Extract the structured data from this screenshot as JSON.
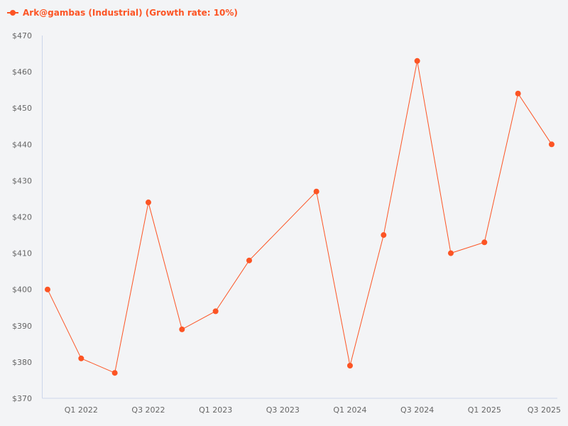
{
  "chart_data": {
    "type": "line",
    "title": "",
    "xlabel": "",
    "ylabel": "",
    "ylim": [
      370,
      470
    ],
    "yticks": [
      370,
      380,
      390,
      400,
      410,
      420,
      430,
      440,
      450,
      460,
      470
    ],
    "ytick_labels": [
      "$370",
      "$380",
      "$390",
      "$400",
      "$410",
      "$420",
      "$430",
      "$440",
      "$450",
      "$460",
      "$470"
    ],
    "categories": [
      "Q4 2021",
      "Q1 2022",
      "Q2 2022",
      "Q3 2022",
      "Q4 2022",
      "Q1 2023",
      "Q2 2023",
      "Q3 2023",
      "Q4 2023",
      "Q1 2024",
      "Q2 2024",
      "Q3 2024",
      "Q4 2024",
      "Q1 2025",
      "Q2 2025",
      "Q3 2025"
    ],
    "xtick_labels": [
      "Q1 2022",
      "Q3 2022",
      "Q1 2023",
      "Q3 2023",
      "Q1 2024",
      "Q3 2024",
      "Q1 2025",
      "Q3 2025"
    ],
    "grid": false,
    "legend_position": "top-left",
    "series": [
      {
        "name": "Ark@gambas (Industrial) (Growth rate: 10%)",
        "color": "#fc5424",
        "values": [
          400,
          381,
          377,
          424,
          389,
          394,
          408,
          null,
          427,
          379,
          415,
          463,
          410,
          413,
          454,
          440
        ]
      }
    ]
  },
  "legend": {
    "label": "Ark@gambas (Industrial) (Growth rate: 10%)",
    "color": "#fc5424"
  },
  "colors": {
    "background": "#f3f4f6",
    "axis": "#ccd6eb",
    "tick_text": "#666666",
    "series": "#fc5424"
  }
}
